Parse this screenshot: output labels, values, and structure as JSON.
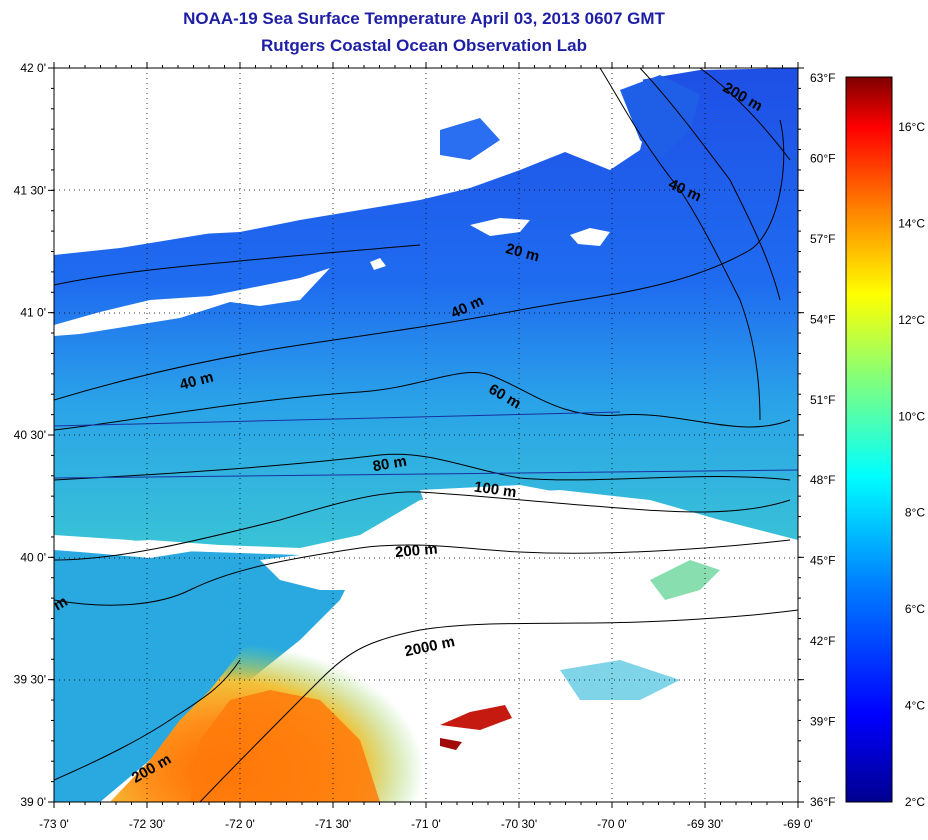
{
  "title": "NOAA-19 Sea Surface Temperature April 03, 2013 0607 GMT",
  "subtitle": "Rutgers Coastal Ocean Observation Lab",
  "axes": {
    "lat_ticks": [
      "42 0'",
      "41 30'",
      "41 0'",
      "40 30'",
      "40 0'",
      "39 30'",
      "39 0'"
    ],
    "lon_ticks": [
      "-73 0'",
      "-72 30'",
      "-72 0'",
      "-71 30'",
      "-71 0'",
      "-70 30'",
      "-70 0'",
      "-69 30'",
      "-69 0'"
    ],
    "fahrenheit_ticks": [
      "63°F",
      "60°F",
      "57°F",
      "54°F",
      "51°F",
      "48°F",
      "45°F",
      "42°F",
      "39°F",
      "36°F"
    ]
  },
  "colorbar": {
    "celsius_ticks": [
      "16°C",
      "14°C",
      "12°C",
      "10°C",
      "8°C",
      "6°C",
      "4°C",
      "2°C"
    ],
    "colors": [
      "#7f0000",
      "#ff0000",
      "#ff7f00",
      "#ffff00",
      "#7fff7f",
      "#00ffff",
      "#007fff",
      "#0000ff",
      "#00008f"
    ]
  },
  "contours": {
    "l200a": "200 m",
    "l40a": "40 m",
    "l20": "20 m",
    "l40b": "40 m",
    "l40c": "40 m",
    "l60": "60 m",
    "l80": "80 m",
    "l100": "100 m",
    "l200b": "200 m",
    "l2000": "2000 m",
    "l200c": "200 m",
    "lm": "m"
  },
  "colors": {
    "title": "#1f1fa6",
    "water_shelf": "#1f5fe8",
    "water_deep": "#ff8a1a",
    "land": "#ffffff"
  }
}
